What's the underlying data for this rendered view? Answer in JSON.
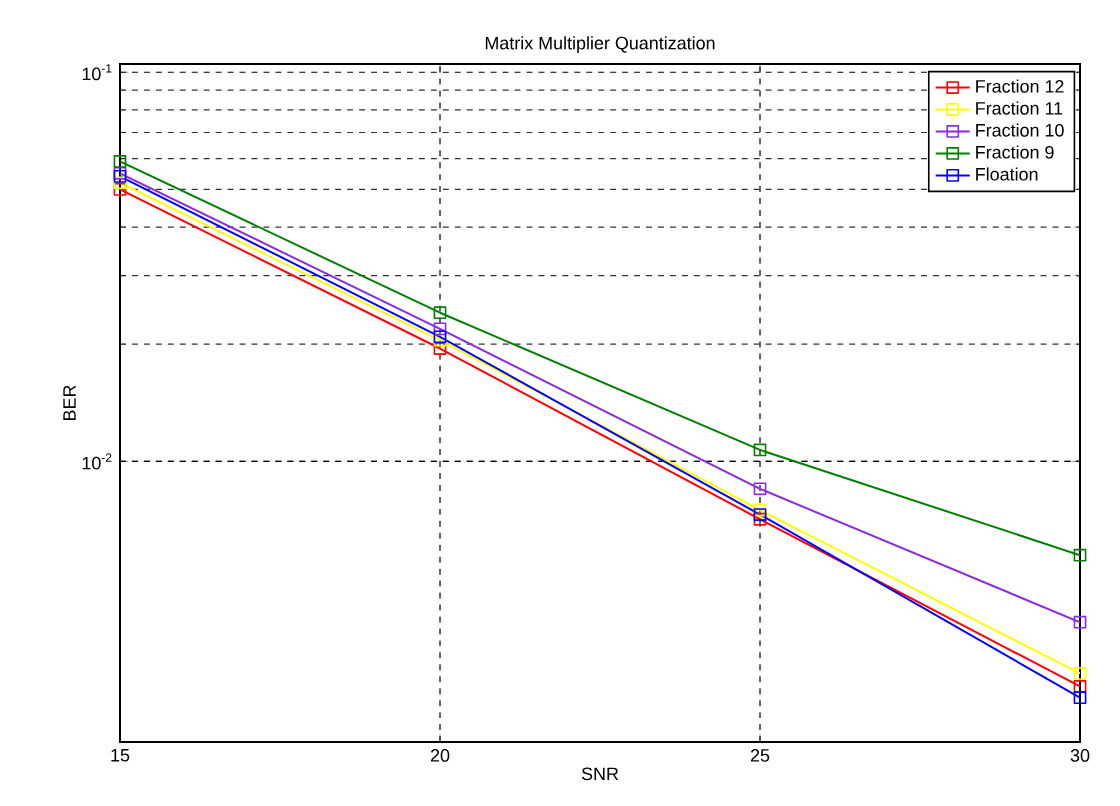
{
  "chart_data": {
    "type": "line",
    "title": "Matrix Multiplier Quantization",
    "xlabel": "SNR",
    "ylabel": "BER",
    "x": [
      15,
      20,
      25,
      30
    ],
    "series": [
      {
        "name": "Fraction 12",
        "color": "#ff0000",
        "values": [
          0.05,
          0.0195,
          0.0071,
          0.00264
        ]
      },
      {
        "name": "Fraction 11",
        "color": "#ffff00",
        "values": [
          0.052,
          0.0205,
          0.0075,
          0.00285
        ]
      },
      {
        "name": "Fraction 10",
        "color": "#8a2be2",
        "values": [
          0.055,
          0.0219,
          0.0085,
          0.00386
        ]
      },
      {
        "name": "Fraction 9",
        "color": "#008000",
        "values": [
          0.059,
          0.0241,
          0.0107,
          0.00574
        ]
      },
      {
        "name": "Floation",
        "color": "#0000ff",
        "values": [
          0.054,
          0.0209,
          0.0073,
          0.00247
        ]
      }
    ],
    "xlim": [
      15,
      30
    ],
    "xticks": [
      15,
      20,
      25,
      30
    ],
    "ylim": [
      0.0019,
      0.105
    ],
    "yticks": [
      {
        "value": 0.01,
        "label": "10$^{-2}$"
      },
      {
        "value": 0.1,
        "label": "10$^{-1}$"
      }
    ],
    "log": "y",
    "grid": true,
    "legend": "top right",
    "marker": "square",
    "line_style": "solid"
  }
}
